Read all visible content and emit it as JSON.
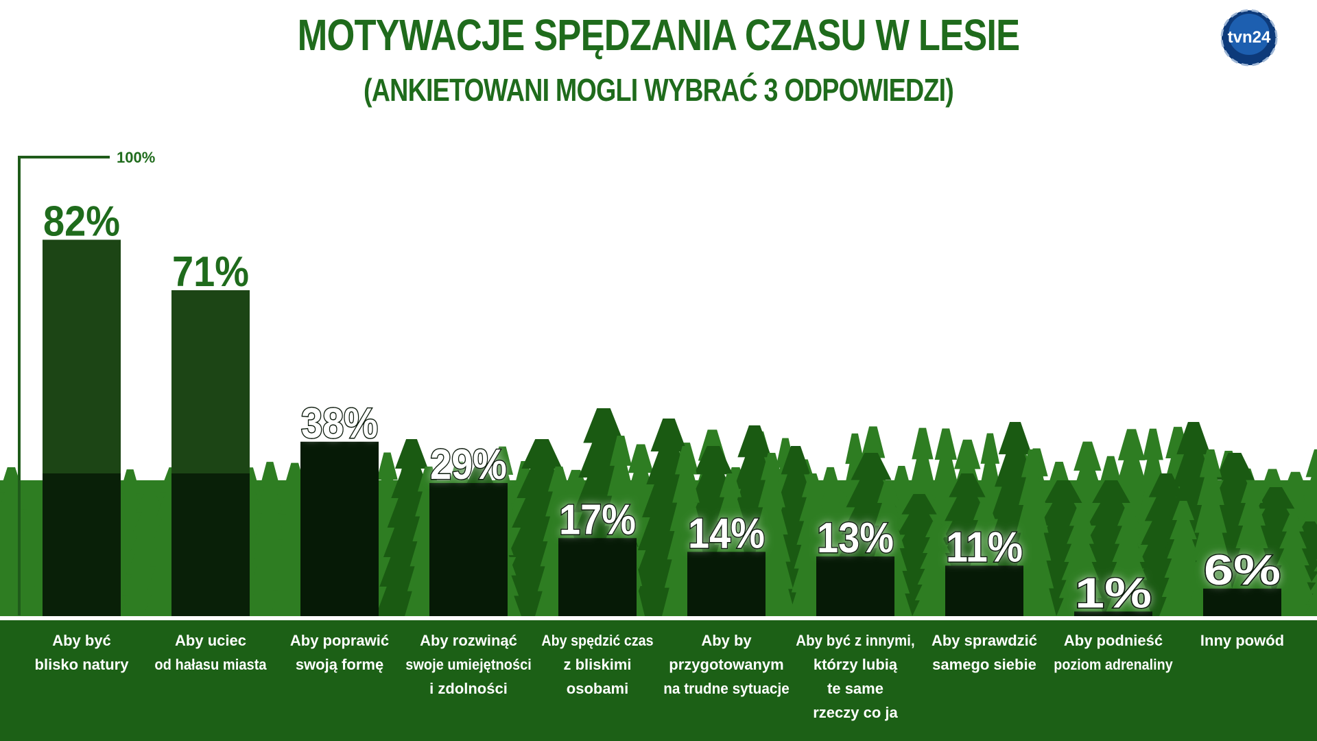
{
  "title": "MOTYWACJE SPĘDZANIA CZASU W LESIE",
  "subtitle": "(ANKIETOWANI MOGLI WYBRAĆ 3 ODPOWIEDZI)",
  "logo_text": "tvn24",
  "colors": {
    "title": "#1f6b1c",
    "forest_light": "#2e7d22",
    "forest_dark": "#1a5a12",
    "bar_on_white": "#1c4515",
    "bar_on_forest": "#061a06",
    "value_on_white": "#1f6b1c",
    "value_on_forest": "#ffffff",
    "label_strip": "#1c6016"
  },
  "chart_data": {
    "type": "bar",
    "title": "MOTYWACJE SPĘDZANIA CZASU W LESIE",
    "subtitle": "(ANKIETOWANI MOGLI WYBRAĆ 3 ODPOWIEDZI)",
    "scale_label": "100%",
    "ylim": [
      0,
      100
    ],
    "grid": false,
    "categories": [
      [
        "Aby być",
        "blisko natury"
      ],
      [
        "Aby uciec",
        "od hałasu miasta"
      ],
      [
        "Aby poprawić",
        "swoją formę"
      ],
      [
        "Aby rozwinąć",
        "swoje umiejętności",
        "i zdolności"
      ],
      [
        "Aby spędzić czas",
        "z bliskimi",
        "osobami"
      ],
      [
        "Aby by",
        "przygotowanym",
        "na trudne sytuacje"
      ],
      [
        "Aby być z innymi,",
        "którzy lubią",
        "te same",
        "rzeczy co ja"
      ],
      [
        "Aby sprawdzić",
        "samego siebie"
      ],
      [
        "Aby podnieść",
        "poziom adrenaliny"
      ],
      [
        "Inny powód"
      ]
    ],
    "values": [
      82,
      71,
      38,
      29,
      17,
      14,
      13,
      11,
      1,
      6
    ],
    "value_labels": [
      "82%",
      "71%",
      "38%",
      "29%",
      "17%",
      "14%",
      "13%",
      "11%",
      "1%",
      "6%"
    ]
  }
}
